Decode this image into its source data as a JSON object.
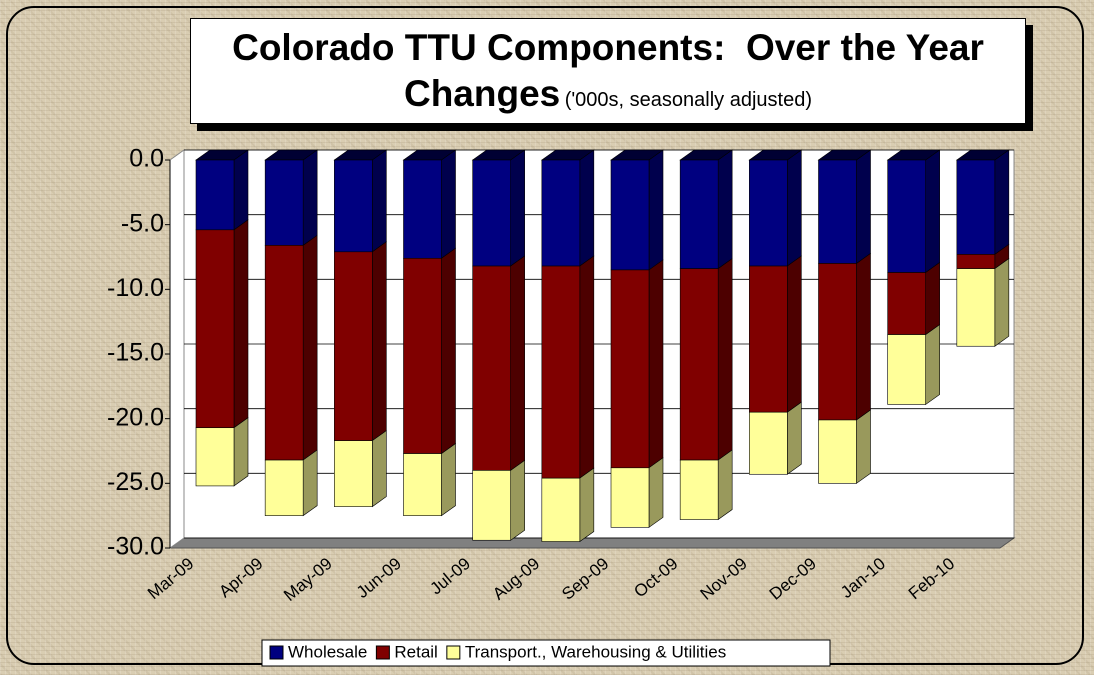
{
  "chart_data": {
    "type": "stacked-bar-3d",
    "title": "Colorado TTU Components:  Over the Year Changes",
    "subtitle": "('000s, seasonally adjusted)",
    "categories": [
      "Mar-09",
      "Apr-09",
      "May-09",
      "Jun-09",
      "Jul-09",
      "Aug-09",
      "Sep-09",
      "Oct-09",
      "Nov-09",
      "Dec-09",
      "Jan-10",
      "Feb-10"
    ],
    "series": [
      {
        "name": "Wholesale",
        "color": "#000080",
        "values": [
          -5.4,
          -6.6,
          -7.1,
          -7.6,
          -8.2,
          -8.2,
          -8.5,
          -8.4,
          -8.2,
          -8.0,
          -8.7,
          -7.3
        ]
      },
      {
        "name": "Retail",
        "color": "#800000",
        "values": [
          -15.3,
          -16.6,
          -14.6,
          -15.1,
          -15.8,
          -16.4,
          -15.3,
          -14.8,
          -11.3,
          -12.1,
          -4.8,
          -1.1
        ]
      },
      {
        "name": "Transport., Warehousing & Utilities",
        "color": "#ffff99",
        "values": [
          -4.5,
          -4.3,
          -5.1,
          -4.8,
          -5.4,
          -4.9,
          -4.6,
          -4.6,
          -4.8,
          -4.9,
          -5.4,
          -6.0
        ]
      }
    ],
    "ylim": [
      -30,
      0
    ],
    "yticks": [
      {
        "value": 0,
        "label": "0.0"
      },
      {
        "value": -5,
        "label": "-5.0"
      },
      {
        "value": -10,
        "label": "-10.0"
      },
      {
        "value": -15,
        "label": "-15.0"
      },
      {
        "value": -20,
        "label": "-20.0"
      },
      {
        "value": -25,
        "label": "-25.0"
      },
      {
        "value": -30,
        "label": "-30.0"
      }
    ],
    "grid": true,
    "legend": "bottom"
  }
}
